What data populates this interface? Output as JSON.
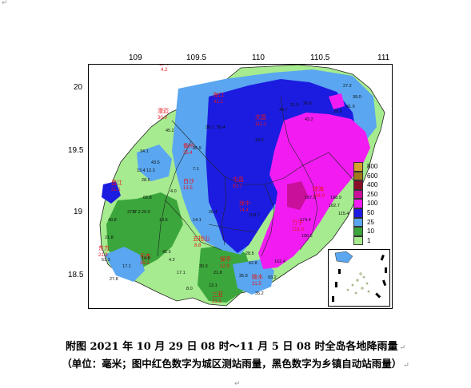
{
  "page": {
    "top_marker": "↵",
    "bottom_marker": "↵"
  },
  "map": {
    "lon_ticks": [
      "109",
      "109.5",
      "110",
      "110.5",
      "111"
    ],
    "lat_ticks": [
      "20",
      "19.5",
      "19",
      "18.5"
    ],
    "city_labels": [
      {
        "name": "海口",
        "value": "41.2"
      },
      {
        "name": "文昌",
        "value": "111.1"
      },
      {
        "name": "澄迈",
        "value": "30.0"
      },
      {
        "name": "临高",
        "value": "4.2"
      },
      {
        "name": "儋州",
        "value": "25.4"
      },
      {
        "name": "屯昌",
        "value": "53.7"
      },
      {
        "name": "琼海",
        "value": "184.9"
      },
      {
        "name": "白沙",
        "value": "13.5"
      },
      {
        "name": "琼中",
        "value": "74.4"
      },
      {
        "name": "万宁",
        "value": "151.0"
      },
      {
        "name": "昌江",
        "value": "21.1"
      },
      {
        "name": "东方",
        "value": "21.3"
      },
      {
        "name": "五指山",
        "value": "8.8"
      },
      {
        "name": "乐东",
        "value": "35.2"
      },
      {
        "name": "保亭",
        "value": "12.9"
      },
      {
        "name": "陵水",
        "value": "31.5"
      },
      {
        "name": "三亚",
        "value": "21.3"
      }
    ],
    "station_values": [
      "27.2",
      "39.0",
      "41.9",
      "40.7",
      "31.0",
      "36.8",
      "29.6",
      "38.1",
      "58.4",
      "33.6",
      "43.2",
      "45.2",
      "35.9",
      "34.1",
      "43.5",
      "13.4",
      "12.3",
      "28.5",
      "37.6",
      "65.8",
      "37.2",
      "29.0",
      "4.0",
      "13.6",
      "7.1",
      "14.1",
      "26.4",
      "40.8",
      "21.8",
      "51.3",
      "17.1",
      "27.8",
      "14.8",
      "42.5",
      "4.2",
      "30.3",
      "21.8",
      "13.1",
      "35.9",
      "62.8",
      "93.2",
      "162.4",
      "109.7",
      "174.4",
      "190.2",
      "187.2",
      "198.9",
      "182.7",
      "115.4",
      "28.5",
      "17.1",
      "8.0",
      "35.2"
    ],
    "legend": {
      "levels": [
        "800",
        "600",
        "400",
        "250",
        "100",
        "50",
        "25",
        "10",
        "1"
      ],
      "colors": [
        "#d6a12a",
        "#a1771a",
        "#8a0d2a",
        "#c9109a",
        "#f21cf2",
        "#1c1ce0",
        "#5aa6f0",
        "#3ba63b",
        "#a6eb8f"
      ]
    },
    "colors": {
      "sea": "#ffffff",
      "land_border": "#222222",
      "red_label": "#e8141c"
    }
  },
  "caption": {
    "line1": "附图   2021 年 10 月 29 日 08 时～11 月 5 日 08 时全岛各地降雨量",
    "line2": "（单位：毫米；图中红色数字为城区测站雨量，黑色数字为乡镇自动站雨量）",
    "mark1": "↵",
    "mark2": "↵"
  }
}
